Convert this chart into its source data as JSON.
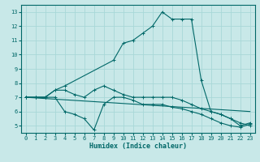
{
  "xlabel": "Humidex (Indice chaleur)",
  "background_color": "#c8e8e8",
  "grid_color": "#a8d8d8",
  "line_color": "#006868",
  "xlim": [
    -0.5,
    23.5
  ],
  "ylim": [
    4.5,
    13.5
  ],
  "xticks": [
    0,
    1,
    2,
    3,
    4,
    5,
    6,
    7,
    8,
    9,
    10,
    11,
    12,
    13,
    14,
    15,
    16,
    17,
    18,
    19,
    20,
    21,
    22,
    23
  ],
  "yticks": [
    5,
    6,
    7,
    8,
    9,
    10,
    11,
    12,
    13
  ],
  "line1_x": [
    0,
    1,
    2,
    3,
    4,
    9,
    10,
    11,
    12,
    13,
    14,
    15,
    16,
    17,
    18,
    19,
    20,
    21,
    22,
    23
  ],
  "line1_y": [
    7.0,
    7.0,
    7.0,
    7.5,
    7.8,
    9.6,
    10.8,
    11.0,
    11.5,
    12.0,
    13.0,
    12.5,
    12.5,
    12.5,
    8.2,
    6.0,
    5.8,
    5.5,
    5.0,
    5.2
  ],
  "line2_x": [
    0,
    1,
    2,
    3,
    4,
    5,
    6,
    7,
    8,
    9,
    10,
    11,
    12,
    13,
    14,
    15,
    16,
    17,
    18,
    19,
    20,
    21,
    22,
    23
  ],
  "line2_y": [
    7.0,
    7.0,
    7.0,
    7.5,
    7.5,
    7.2,
    7.0,
    7.5,
    7.8,
    7.5,
    7.2,
    7.0,
    7.0,
    7.0,
    7.0,
    7.0,
    6.8,
    6.5,
    6.2,
    6.0,
    5.8,
    5.5,
    5.2,
    5.0
  ],
  "line3_x": [
    0,
    1,
    2,
    3,
    4,
    5,
    6,
    7,
    8,
    9,
    10,
    11,
    12,
    13,
    14,
    15,
    16,
    17,
    18,
    19,
    20,
    21,
    22,
    23
  ],
  "line3_y": [
    7.0,
    7.0,
    7.0,
    7.0,
    6.0,
    5.8,
    5.5,
    4.7,
    6.5,
    7.0,
    7.0,
    6.8,
    6.5,
    6.5,
    6.5,
    6.3,
    6.2,
    6.0,
    5.8,
    5.5,
    5.2,
    5.0,
    4.9,
    5.1
  ],
  "line4_x": [
    0,
    23
  ],
  "line4_y": [
    7.0,
    6.0
  ]
}
